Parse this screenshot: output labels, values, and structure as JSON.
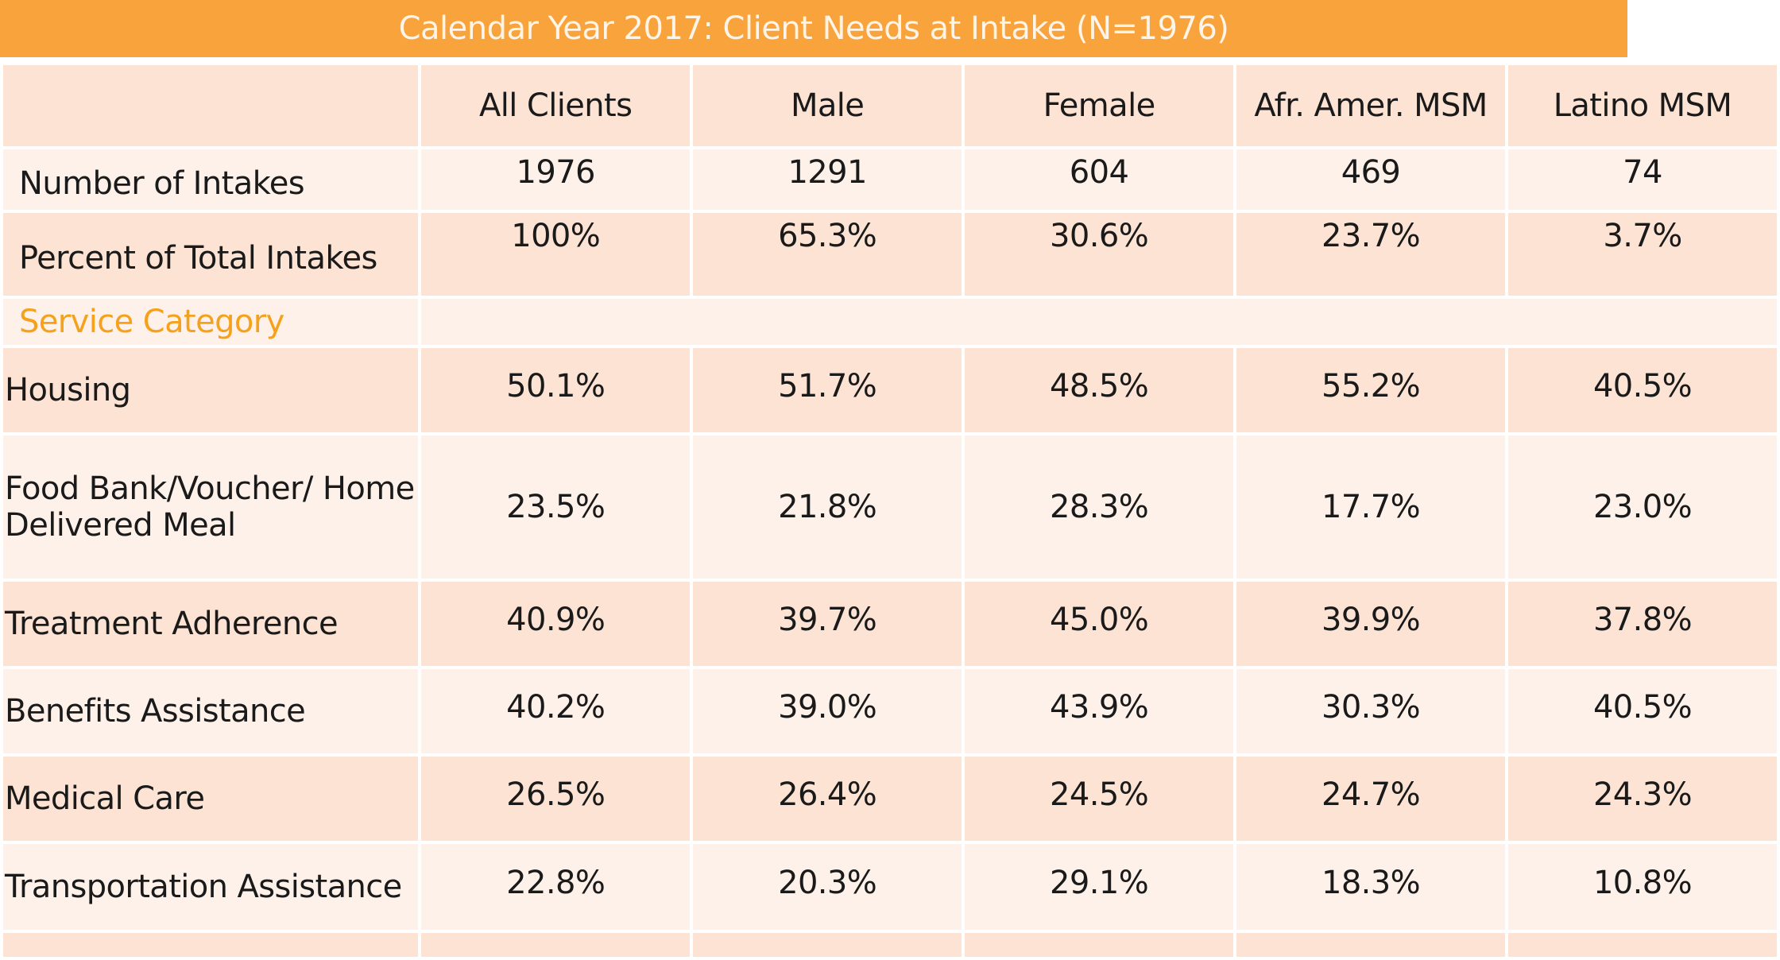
{
  "title": "Calendar Year 2017: Client Needs at Intake (N=1976)",
  "columns": [
    "",
    "All Clients",
    "Male",
    "Female",
    "Afr. Amer. MSM",
    "Latino MSM"
  ],
  "summary_rows": [
    {
      "label": "Number of Intakes",
      "values": [
        "1976",
        "1291",
        "604",
        "469",
        "74"
      ]
    },
    {
      "label": "Percent of Total Intakes",
      "values": [
        "100%",
        "65.3%",
        "30.6%",
        "23.7%",
        "3.7%"
      ]
    }
  ],
  "section_label": "Service Category",
  "service_rows": [
    {
      "label": "Housing",
      "values": [
        "50.1%",
        "51.7%",
        "48.5%",
        "55.2%",
        "40.5%"
      ]
    },
    {
      "label": "Food Bank/Voucher/ Home Delivered Meal",
      "values": [
        "23.5%",
        "21.8%",
        "28.3%",
        "17.7%",
        "23.0%"
      ]
    },
    {
      "label": "Treatment Adherence",
      "values": [
        "40.9%",
        "39.7%",
        "45.0%",
        "39.9%",
        "37.8%"
      ]
    },
    {
      "label": "Benefits Assistance",
      "values": [
        "40.2%",
        "39.0%",
        "43.9%",
        "30.3%",
        "40.5%"
      ]
    },
    {
      "label": "Medical Care",
      "values": [
        "26.5%",
        "26.4%",
        "24.5%",
        "24.7%",
        "24.3%"
      ]
    },
    {
      "label": "Transportation Assistance",
      "values": [
        "22.8%",
        "20.3%",
        "29.1%",
        "18.3%",
        "10.8%"
      ]
    }
  ],
  "colors": {
    "title_bar": "#f8a33c",
    "row_dark": "#fde3d4",
    "row_light": "#fef1ea",
    "section_text": "#f5a11b"
  }
}
